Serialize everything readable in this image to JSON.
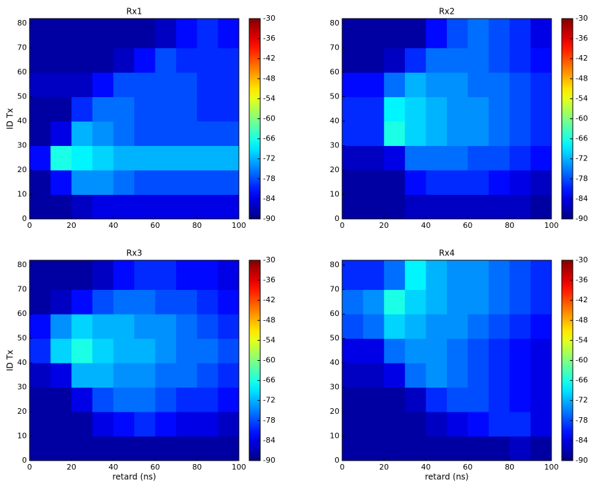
{
  "chart_data": [
    {
      "type": "heatmap",
      "title": "Rx1",
      "ylabel": "ID Tx",
      "colormap": "jet",
      "x": [
        0,
        10,
        20,
        30,
        40,
        50,
        60,
        70,
        80,
        90,
        100
      ],
      "y": [
        0,
        10,
        20,
        30,
        40,
        50,
        60,
        70,
        82
      ],
      "values": [
        [
          -88,
          -88,
          -86,
          -84,
          -84,
          -84,
          -84,
          -84,
          -84,
          -84
        ],
        [
          -88,
          -82,
          -74,
          -74,
          -76,
          -78,
          -78,
          -78,
          -78,
          -78
        ],
        [
          -82,
          -66,
          -68,
          -70,
          -72,
          -72,
          -72,
          -72,
          -72,
          -72
        ],
        [
          -88,
          -84,
          -72,
          -74,
          -76,
          -78,
          -78,
          -78,
          -78,
          -78
        ],
        [
          -88,
          -88,
          -80,
          -76,
          -76,
          -78,
          -78,
          -78,
          -80,
          -80
        ],
        [
          -86,
          -86,
          -86,
          -82,
          -78,
          -78,
          -78,
          -78,
          -80,
          -80
        ],
        [
          -88,
          -88,
          -88,
          -88,
          -86,
          -82,
          -78,
          -80,
          -80,
          -80
        ],
        [
          -88,
          -88,
          -88,
          -88,
          -88,
          -88,
          -86,
          -82,
          -80,
          -82
        ]
      ],
      "xlim": [
        0,
        100
      ],
      "ylim": [
        0,
        82
      ],
      "xticks": [
        0,
        20,
        40,
        60,
        80,
        100
      ],
      "yticks": [
        0,
        10,
        20,
        30,
        40,
        50,
        60,
        70,
        80
      ],
      "zlim": [
        -90,
        -30
      ],
      "zticks": [
        -30,
        -36,
        -42,
        -48,
        -54,
        -60,
        -66,
        -72,
        -78,
        -84,
        -90
      ]
    },
    {
      "type": "heatmap",
      "title": "Rx2",
      "colormap": "jet",
      "x": [
        0,
        10,
        20,
        30,
        40,
        50,
        60,
        70,
        80,
        90,
        100
      ],
      "y": [
        0,
        10,
        20,
        30,
        40,
        50,
        60,
        70,
        82
      ],
      "values": [
        [
          -88,
          -88,
          -88,
          -86,
          -86,
          -86,
          -86,
          -86,
          -86,
          -88
        ],
        [
          -88,
          -88,
          -88,
          -82,
          -80,
          -80,
          -80,
          -82,
          -84,
          -86
        ],
        [
          -86,
          -86,
          -84,
          -76,
          -76,
          -76,
          -78,
          -78,
          -80,
          -82
        ],
        [
          -80,
          -80,
          -66,
          -70,
          -72,
          -74,
          -74,
          -76,
          -78,
          -80
        ],
        [
          -80,
          -80,
          -68,
          -70,
          -72,
          -74,
          -74,
          -76,
          -78,
          -80
        ],
        [
          -82,
          -82,
          -76,
          -72,
          -74,
          -74,
          -76,
          -76,
          -78,
          -80
        ],
        [
          -88,
          -88,
          -86,
          -80,
          -76,
          -76,
          -76,
          -78,
          -80,
          -82
        ],
        [
          -88,
          -88,
          -88,
          -88,
          -82,
          -78,
          -76,
          -78,
          -80,
          -84
        ]
      ],
      "xlim": [
        0,
        100
      ],
      "ylim": [
        0,
        82
      ],
      "xticks": [
        0,
        20,
        40,
        60,
        80,
        100
      ],
      "yticks": [
        0,
        10,
        20,
        30,
        40,
        50,
        60,
        70,
        80
      ],
      "zlim": [
        -90,
        -30
      ],
      "zticks": [
        -30,
        -36,
        -42,
        -48,
        -54,
        -60,
        -66,
        -72,
        -78,
        -84,
        -90
      ]
    },
    {
      "type": "heatmap",
      "title": "Rx3",
      "xlabel": "retard (ns)",
      "ylabel": "ID Tx",
      "colormap": "jet",
      "x": [
        0,
        10,
        20,
        30,
        40,
        50,
        60,
        70,
        80,
        90,
        100
      ],
      "y": [
        0,
        10,
        20,
        30,
        40,
        50,
        60,
        70,
        82
      ],
      "values": [
        [
          -88,
          -88,
          -88,
          -88,
          -88,
          -88,
          -88,
          -88,
          -88,
          -88
        ],
        [
          -88,
          -88,
          -88,
          -84,
          -82,
          -80,
          -82,
          -84,
          -84,
          -86
        ],
        [
          -88,
          -88,
          -84,
          -78,
          -76,
          -76,
          -78,
          -80,
          -80,
          -82
        ],
        [
          -86,
          -84,
          -72,
          -72,
          -74,
          -74,
          -76,
          -76,
          -78,
          -80
        ],
        [
          -80,
          -70,
          -66,
          -70,
          -72,
          -72,
          -74,
          -76,
          -76,
          -78
        ],
        [
          -82,
          -74,
          -70,
          -72,
          -72,
          -74,
          -74,
          -76,
          -78,
          -80
        ],
        [
          -88,
          -86,
          -82,
          -78,
          -76,
          -76,
          -78,
          -78,
          -80,
          -82
        ],
        [
          -88,
          -88,
          -88,
          -86,
          -82,
          -80,
          -80,
          -82,
          -82,
          -84
        ]
      ],
      "xlim": [
        0,
        100
      ],
      "ylim": [
        0,
        82
      ],
      "xticks": [
        0,
        20,
        40,
        60,
        80,
        100
      ],
      "yticks": [
        0,
        10,
        20,
        30,
        40,
        50,
        60,
        70,
        80
      ],
      "zlim": [
        -90,
        -30
      ],
      "zticks": [
        -30,
        -36,
        -42,
        -48,
        -54,
        -60,
        -66,
        -72,
        -78,
        -84,
        -90
      ]
    },
    {
      "type": "heatmap",
      "title": "Rx4",
      "xlabel": "retard (ns)",
      "colormap": "jet",
      "x": [
        0,
        10,
        20,
        30,
        40,
        50,
        60,
        70,
        80,
        90,
        100
      ],
      "y": [
        0,
        10,
        20,
        30,
        40,
        50,
        60,
        70,
        82
      ],
      "values": [
        [
          -88,
          -88,
          -88,
          -88,
          -88,
          -88,
          -88,
          -88,
          -86,
          -88
        ],
        [
          -88,
          -88,
          -88,
          -88,
          -86,
          -84,
          -82,
          -80,
          -80,
          -84
        ],
        [
          -88,
          -88,
          -88,
          -86,
          -80,
          -78,
          -78,
          -80,
          -82,
          -84
        ],
        [
          -86,
          -86,
          -84,
          -76,
          -74,
          -76,
          -78,
          -80,
          -82,
          -84
        ],
        [
          -84,
          -84,
          -76,
          -74,
          -74,
          -76,
          -78,
          -80,
          -82,
          -84
        ],
        [
          -78,
          -76,
          -70,
          -72,
          -74,
          -74,
          -76,
          -78,
          -80,
          -82
        ],
        [
          -76,
          -74,
          -66,
          -70,
          -72,
          -74,
          -74,
          -76,
          -78,
          -80
        ],
        [
          -80,
          -80,
          -76,
          -68,
          -72,
          -74,
          -74,
          -76,
          -78,
          -80
        ]
      ],
      "xlim": [
        0,
        100
      ],
      "ylim": [
        0,
        82
      ],
      "xticks": [
        0,
        20,
        40,
        60,
        80,
        100
      ],
      "yticks": [
        0,
        10,
        20,
        30,
        40,
        50,
        60,
        70,
        80
      ],
      "zlim": [
        -90,
        -30
      ],
      "zticks": [
        -30,
        -36,
        -42,
        -48,
        -54,
        -60,
        -66,
        -72,
        -78,
        -84,
        -90
      ]
    }
  ]
}
